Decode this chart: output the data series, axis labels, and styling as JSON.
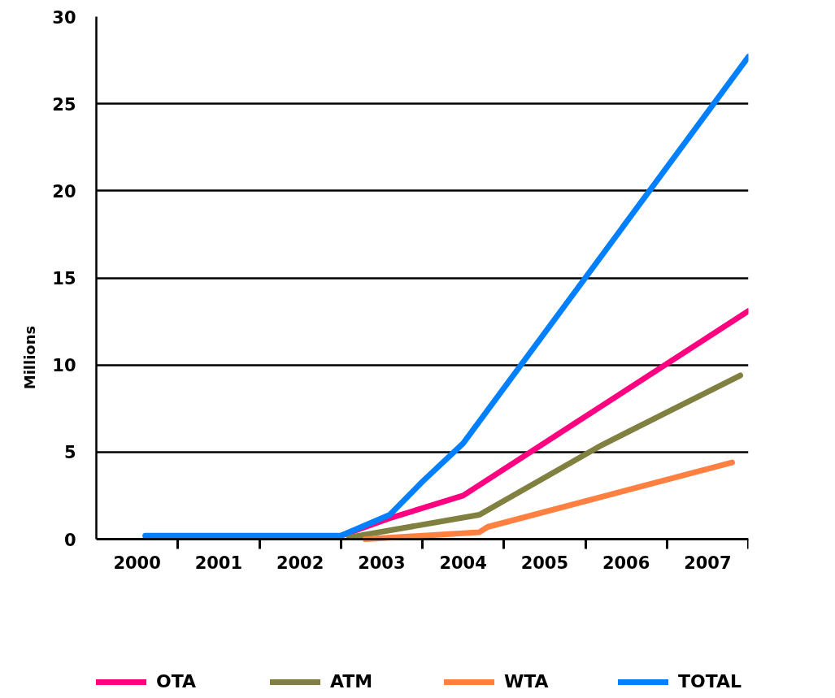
{
  "chart_data": {
    "type": "line",
    "ylabel": "Millions",
    "xlim": [
      1999.5,
      2007.5
    ],
    "xticks": [
      2000,
      2001,
      2002,
      2003,
      2004,
      2005,
      2006,
      2007,
      {
        "value": 2000.5,
        "label": null
      },
      {
        "value": 2001.5,
        "label": null
      },
      {
        "value": 2002.5,
        "label": null
      },
      {
        "value": 2003.5,
        "label": null
      },
      {
        "value": 2004.5,
        "label": null
      },
      {
        "value": 2005.5,
        "label": null
      },
      {
        "value": 2006.5,
        "label": null
      },
      {
        "value": 2007.5,
        "label": null
      }
    ],
    "ylim": [
      0,
      30
    ],
    "yticks": [
      0,
      5,
      10,
      15,
      20,
      25,
      30
    ],
    "grid": "y",
    "legend": "bottom",
    "series": [
      {
        "name": "OTA",
        "color": "#ff0080",
        "x": [
          2002.5,
          2003.1,
          2004.0,
          2007.5
        ],
        "values": [
          0.2,
          1.2,
          2.5,
          13.1
        ]
      },
      {
        "name": "ATM",
        "color": "#808040",
        "x": [
          2002.6,
          2004.2,
          2005.7,
          2007.4
        ],
        "values": [
          0.1,
          1.4,
          5.4,
          9.4
        ]
      },
      {
        "name": "WTA",
        "color": "#ff8040",
        "x": [
          2002.8,
          2004.2,
          2004.3,
          2007.3
        ],
        "values": [
          0,
          0.4,
          0.7,
          4.4
        ]
      },
      {
        "name": "TOTAL",
        "color": "#0080ff",
        "x": [
          2000.1,
          2002.5,
          2003.1,
          2003.5,
          2004.0,
          2007.5
        ],
        "values": [
          0.2,
          0.2,
          1.4,
          3.3,
          5.5,
          27.7
        ]
      }
    ]
  }
}
